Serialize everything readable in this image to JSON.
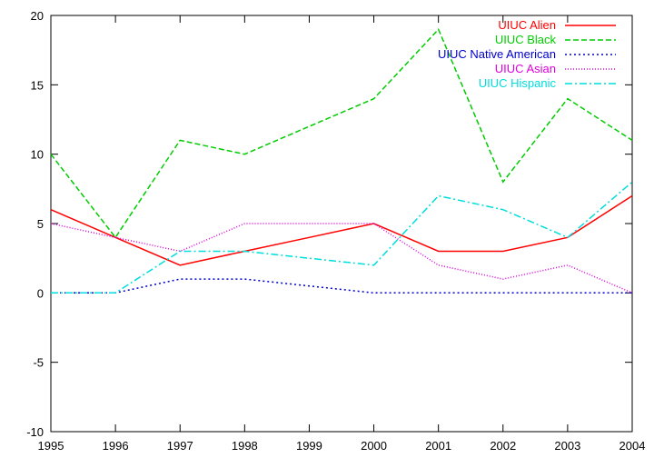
{
  "chart_data": {
    "type": "line",
    "title": "",
    "xlabel": "",
    "ylabel": "",
    "x": [
      1995,
      1996,
      1997,
      1998,
      1999,
      2000,
      2001,
      2002,
      2003,
      2004
    ],
    "xlim": [
      1995,
      2004
    ],
    "ylim": [
      -10,
      20
    ],
    "yticks": [
      -10,
      -5,
      0,
      5,
      10,
      15,
      20
    ],
    "xticks": [
      1995,
      1996,
      1997,
      1998,
      1999,
      2000,
      2001,
      2002,
      2003,
      2004
    ],
    "grid": false,
    "legend_position": "top-right",
    "series": [
      {
        "name": "UIUC Alien",
        "color": "#ff0000",
        "dash": "solid",
        "values": [
          6,
          4,
          2,
          3,
          4,
          5,
          3,
          3,
          4,
          7
        ]
      },
      {
        "name": "UIUC Black",
        "color": "#00cc00",
        "dash": "dashed",
        "values": [
          10,
          4,
          11,
          10,
          12,
          14,
          19,
          8,
          14,
          11
        ]
      },
      {
        "name": "UIUC Native American",
        "color": "#0000cc",
        "dash": "dotted",
        "values": [
          0,
          0,
          1,
          1,
          0.5,
          0,
          0,
          0,
          0,
          0
        ]
      },
      {
        "name": "UIUC Asian",
        "color": "#dd00dd",
        "dash": "fine-dotted",
        "values": [
          5,
          4,
          3,
          5,
          5,
          5,
          2,
          1,
          2,
          0
        ]
      },
      {
        "name": "UIUC Hispanic",
        "color": "#00dddd",
        "dash": "dash-dot",
        "values": [
          0,
          0,
          3,
          3,
          2.5,
          2,
          7,
          6,
          4,
          8
        ]
      }
    ]
  }
}
